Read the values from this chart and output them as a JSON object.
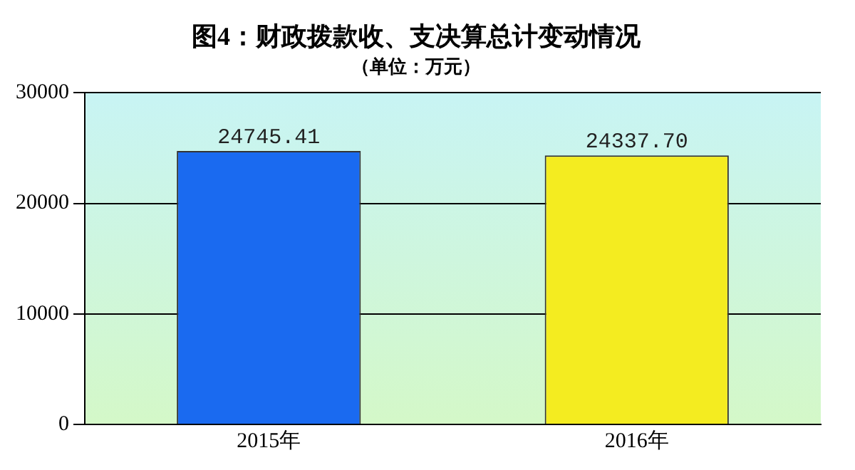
{
  "chart_data": {
    "type": "bar",
    "title": "图4：财政拨款收、支决算总计变动情况",
    "subtitle": "（单位：万元）",
    "categories": [
      "2015年",
      "2016年"
    ],
    "values": [
      24745.41,
      24337.7
    ],
    "colors": [
      "#1a6af0",
      "#f4ec20"
    ],
    "value_labels": [
      "24745.41",
      "24337.70"
    ],
    "ylim": [
      0,
      30000
    ],
    "yticks": [
      0,
      10000,
      20000,
      30000
    ],
    "grid": "y"
  }
}
